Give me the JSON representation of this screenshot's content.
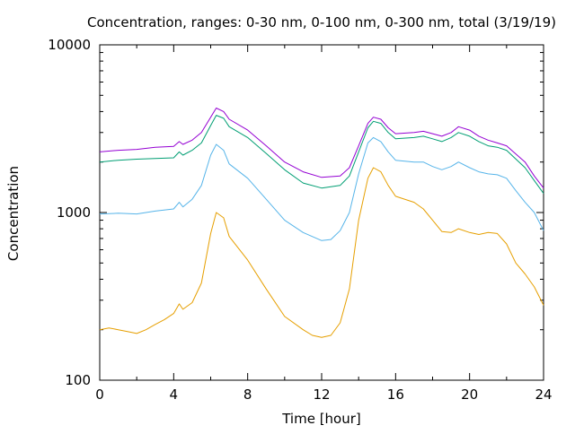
{
  "chart_data": {
    "type": "line",
    "title": "Concentration, ranges: 0-30 nm, 0-100 nm, 0-300 nm, total (3/19/19)",
    "xlabel": "Time [hour]",
    "ylabel": "Concentration",
    "xlim": [
      0,
      24
    ],
    "ylim": [
      100,
      10000
    ],
    "yscale": "log",
    "x_ticks": [
      0,
      4,
      8,
      12,
      16,
      20,
      24
    ],
    "y_ticks": [
      100,
      1000,
      10000
    ],
    "legend": "none",
    "series": [
      {
        "color": "#9400d3",
        "points": [
          [
            0,
            2300
          ],
          [
            1,
            2350
          ],
          [
            2,
            2380
          ],
          [
            3,
            2450
          ],
          [
            4,
            2480
          ],
          [
            4.3,
            2650
          ],
          [
            4.5,
            2550
          ],
          [
            5,
            2700
          ],
          [
            5.5,
            3000
          ],
          [
            6,
            3700
          ],
          [
            6.3,
            4200
          ],
          [
            6.7,
            4000
          ],
          [
            7,
            3600
          ],
          [
            8,
            3100
          ],
          [
            9,
            2500
          ],
          [
            10,
            2000
          ],
          [
            11,
            1750
          ],
          [
            12,
            1620
          ],
          [
            13,
            1650
          ],
          [
            13.5,
            1850
          ],
          [
            14,
            2500
          ],
          [
            14.5,
            3400
          ],
          [
            14.8,
            3700
          ],
          [
            15.2,
            3600
          ],
          [
            15.6,
            3200
          ],
          [
            16,
            2950
          ],
          [
            17,
            3000
          ],
          [
            17.5,
            3050
          ],
          [
            18,
            2950
          ],
          [
            18.5,
            2850
          ],
          [
            19,
            3000
          ],
          [
            19.4,
            3250
          ],
          [
            20,
            3100
          ],
          [
            20.5,
            2850
          ],
          [
            21,
            2700
          ],
          [
            21.5,
            2600
          ],
          [
            22,
            2500
          ],
          [
            23,
            2000
          ],
          [
            23.5,
            1650
          ],
          [
            24,
            1400
          ]
        ]
      },
      {
        "color": "#009e73",
        "points": [
          [
            0,
            2000
          ],
          [
            1,
            2050
          ],
          [
            2,
            2080
          ],
          [
            3,
            2100
          ],
          [
            4,
            2120
          ],
          [
            4.3,
            2300
          ],
          [
            4.5,
            2200
          ],
          [
            5,
            2350
          ],
          [
            5.5,
            2600
          ],
          [
            6,
            3300
          ],
          [
            6.3,
            3800
          ],
          [
            6.7,
            3650
          ],
          [
            7,
            3250
          ],
          [
            8,
            2800
          ],
          [
            9,
            2250
          ],
          [
            10,
            1800
          ],
          [
            11,
            1500
          ],
          [
            12,
            1400
          ],
          [
            13,
            1450
          ],
          [
            13.5,
            1650
          ],
          [
            14,
            2300
          ],
          [
            14.5,
            3200
          ],
          [
            14.8,
            3500
          ],
          [
            15.2,
            3400
          ],
          [
            15.6,
            3000
          ],
          [
            16,
            2750
          ],
          [
            17,
            2800
          ],
          [
            17.5,
            2850
          ],
          [
            18,
            2750
          ],
          [
            18.5,
            2650
          ],
          [
            19,
            2800
          ],
          [
            19.4,
            3000
          ],
          [
            20,
            2850
          ],
          [
            20.5,
            2650
          ],
          [
            21,
            2500
          ],
          [
            21.5,
            2450
          ],
          [
            22,
            2350
          ],
          [
            23,
            1850
          ],
          [
            23.5,
            1550
          ],
          [
            24,
            1300
          ]
        ]
      },
      {
        "color": "#56b4e9",
        "points": [
          [
            0,
            980
          ],
          [
            1,
            990
          ],
          [
            2,
            980
          ],
          [
            3,
            1020
          ],
          [
            4,
            1050
          ],
          [
            4.3,
            1150
          ],
          [
            4.5,
            1080
          ],
          [
            5,
            1200
          ],
          [
            5.5,
            1450
          ],
          [
            6,
            2200
          ],
          [
            6.3,
            2550
          ],
          [
            6.7,
            2350
          ],
          [
            7,
            1950
          ],
          [
            8,
            1600
          ],
          [
            9,
            1200
          ],
          [
            10,
            900
          ],
          [
            11,
            760
          ],
          [
            12,
            680
          ],
          [
            12.5,
            690
          ],
          [
            13,
            780
          ],
          [
            13.5,
            1000
          ],
          [
            14,
            1700
          ],
          [
            14.5,
            2600
          ],
          [
            14.8,
            2800
          ],
          [
            15.2,
            2650
          ],
          [
            15.6,
            2300
          ],
          [
            16,
            2050
          ],
          [
            17,
            2000
          ],
          [
            17.5,
            2000
          ],
          [
            18,
            1880
          ],
          [
            18.5,
            1800
          ],
          [
            19,
            1880
          ],
          [
            19.4,
            2000
          ],
          [
            20,
            1850
          ],
          [
            20.5,
            1750
          ],
          [
            21,
            1700
          ],
          [
            21.5,
            1680
          ],
          [
            22,
            1600
          ],
          [
            22.5,
            1350
          ],
          [
            23,
            1150
          ],
          [
            23.5,
            1000
          ],
          [
            24,
            780
          ]
        ]
      },
      {
        "color": "#e69f00",
        "points": [
          [
            0,
            200
          ],
          [
            0.5,
            205
          ],
          [
            1,
            200
          ],
          [
            1.5,
            195
          ],
          [
            2,
            190
          ],
          [
            2.5,
            200
          ],
          [
            3,
            215
          ],
          [
            3.5,
            230
          ],
          [
            4,
            250
          ],
          [
            4.3,
            285
          ],
          [
            4.5,
            265
          ],
          [
            5,
            290
          ],
          [
            5.5,
            380
          ],
          [
            6,
            750
          ],
          [
            6.3,
            1000
          ],
          [
            6.7,
            930
          ],
          [
            7,
            720
          ],
          [
            8,
            520
          ],
          [
            9,
            350
          ],
          [
            10,
            240
          ],
          [
            11,
            200
          ],
          [
            11.5,
            185
          ],
          [
            12,
            180
          ],
          [
            12.5,
            185
          ],
          [
            13,
            220
          ],
          [
            13.5,
            350
          ],
          [
            14,
            900
          ],
          [
            14.5,
            1600
          ],
          [
            14.8,
            1850
          ],
          [
            15.2,
            1750
          ],
          [
            15.6,
            1450
          ],
          [
            16,
            1250
          ],
          [
            17,
            1150
          ],
          [
            17.5,
            1050
          ],
          [
            18,
            900
          ],
          [
            18.5,
            770
          ],
          [
            19,
            760
          ],
          [
            19.4,
            800
          ],
          [
            20,
            760
          ],
          [
            20.5,
            740
          ],
          [
            21,
            760
          ],
          [
            21.5,
            750
          ],
          [
            22,
            650
          ],
          [
            22.5,
            500
          ],
          [
            23,
            430
          ],
          [
            23.5,
            360
          ],
          [
            24,
            280
          ]
        ]
      }
    ]
  }
}
